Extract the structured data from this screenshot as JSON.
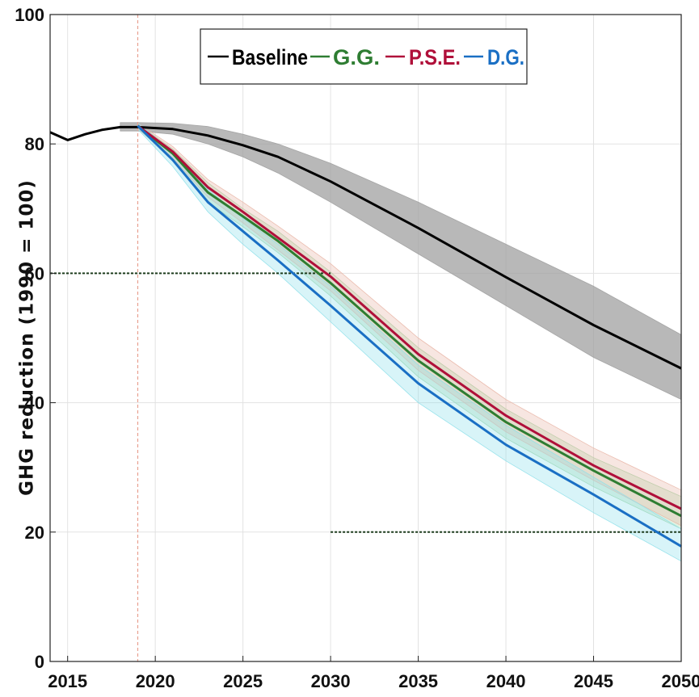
{
  "chart_data": {
    "type": "line",
    "title": "",
    "xlabel": "",
    "ylabel": "GHG reduction (1990 = 100)",
    "xlim": [
      2014,
      2050
    ],
    "ylim": [
      0,
      100
    ],
    "xticks": [
      2015,
      2020,
      2025,
      2030,
      2035,
      2040,
      2045,
      2050
    ],
    "yticks": [
      0,
      20,
      40,
      60,
      80,
      100
    ],
    "grid": true,
    "legend_position": "top",
    "vertical_marker_year": 2019,
    "reference_lines": [
      {
        "x": [
          2014,
          2030
        ],
        "y": 60
      },
      {
        "x": [
          2030,
          2050
        ],
        "y": 20
      }
    ],
    "series": [
      {
        "name": "Baseline",
        "color": "#000000",
        "band_color": "#a0a0a0",
        "x": [
          2014,
          2015,
          2016,
          2017,
          2018,
          2019,
          2021,
          2023,
          2025,
          2027,
          2030,
          2035,
          2040,
          2045,
          2050
        ],
        "values": [
          81.8,
          80.6,
          81.5,
          82.2,
          82.6,
          82.6,
          82.3,
          81.3,
          79.8,
          78.0,
          74.2,
          67.0,
          59.4,
          52.0,
          45.3
        ],
        "upper": [
          null,
          null,
          null,
          null,
          83.3,
          83.3,
          83.2,
          82.7,
          81.5,
          80.0,
          77.0,
          71.0,
          64.5,
          58.0,
          50.5
        ],
        "lower": [
          null,
          null,
          null,
          null,
          82.0,
          82.0,
          81.5,
          80.0,
          78.0,
          75.5,
          71.0,
          63.0,
          55.0,
          47.0,
          40.5
        ]
      },
      {
        "name": "G.G.",
        "color": "#2e7d32",
        "band_color": "#a5d6a7",
        "x": [
          2019,
          2021,
          2023,
          2025,
          2027,
          2030,
          2035,
          2040,
          2045,
          2050
        ],
        "values": [
          82.8,
          78.5,
          72.5,
          68.8,
          65.0,
          58.5,
          46.5,
          37.0,
          29.5,
          22.5
        ],
        "upper": [
          83.1,
          79.2,
          74.0,
          70.0,
          66.5,
          60.2,
          48.5,
          39.0,
          31.5,
          25.5
        ],
        "lower": [
          82.4,
          77.5,
          71.0,
          67.2,
          63.2,
          56.5,
          44.0,
          34.5,
          27.0,
          20.5
        ]
      },
      {
        "name": "P.S.E.",
        "color": "#b0103a",
        "band_color": "#e9b7a8",
        "x": [
          2019,
          2021,
          2023,
          2025,
          2027,
          2030,
          2035,
          2040,
          2045,
          2050
        ],
        "values": [
          82.8,
          78.8,
          73.3,
          69.5,
          65.5,
          59.5,
          47.5,
          38.0,
          30.3,
          23.6
        ],
        "upper": [
          83.2,
          79.6,
          74.5,
          71.0,
          67.3,
          61.5,
          50.0,
          40.5,
          33.0,
          26.5
        ],
        "lower": [
          82.4,
          77.8,
          71.8,
          67.8,
          63.6,
          57.3,
          45.0,
          35.5,
          28.0,
          21.0
        ]
      },
      {
        "name": "D.G.",
        "color": "#1a6fc4",
        "band_color": "#8fe0ea",
        "x": [
          2019,
          2021,
          2023,
          2025,
          2027,
          2030,
          2035,
          2040,
          2045,
          2050
        ],
        "values": [
          82.8,
          77.5,
          71.0,
          66.5,
          62.0,
          55.0,
          43.0,
          33.5,
          25.8,
          17.8
        ],
        "upper": [
          83.2,
          78.8,
          73.0,
          68.5,
          64.5,
          58.0,
          45.8,
          36.5,
          28.5,
          20.5
        ],
        "lower": [
          82.3,
          76.5,
          69.5,
          64.5,
          60.0,
          52.5,
          40.0,
          31.0,
          23.0,
          15.5
        ]
      }
    ]
  }
}
